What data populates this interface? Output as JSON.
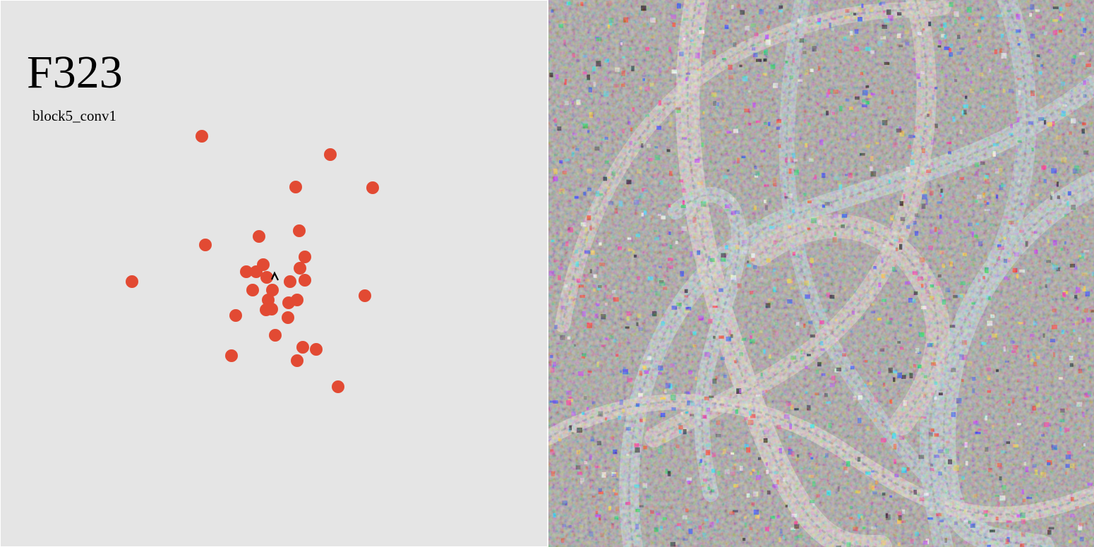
{
  "feature": {
    "id": "F323",
    "layer": "block5_conv1"
  },
  "colors": {
    "panel_background": "#e5e5e5",
    "point": "#e24a33",
    "cursor": "#000000"
  },
  "cursor_icon": "pointer-arrow-icon",
  "chart_data": {
    "type": "scatter",
    "title": "",
    "xlabel": "",
    "ylabel": "",
    "grid": false,
    "axes_visible": false,
    "xlim": [
      0,
      774
    ],
    "ylim": [
      773,
      0
    ],
    "points": [
      {
        "x": 285,
        "y": 192
      },
      {
        "x": 467,
        "y": 218
      },
      {
        "x": 418,
        "y": 264
      },
      {
        "x": 527,
        "y": 265
      },
      {
        "x": 366,
        "y": 334
      },
      {
        "x": 423,
        "y": 326
      },
      {
        "x": 290,
        "y": 346
      },
      {
        "x": 431,
        "y": 363
      },
      {
        "x": 186,
        "y": 398
      },
      {
        "x": 348,
        "y": 384
      },
      {
        "x": 362,
        "y": 384
      },
      {
        "x": 372,
        "y": 374
      },
      {
        "x": 377,
        "y": 392
      },
      {
        "x": 424,
        "y": 379
      },
      {
        "x": 410,
        "y": 398
      },
      {
        "x": 431,
        "y": 396
      },
      {
        "x": 357,
        "y": 410
      },
      {
        "x": 385,
        "y": 410
      },
      {
        "x": 516,
        "y": 418
      },
      {
        "x": 408,
        "y": 428
      },
      {
        "x": 420,
        "y": 424
      },
      {
        "x": 379,
        "y": 424
      },
      {
        "x": 376,
        "y": 438
      },
      {
        "x": 384,
        "y": 437
      },
      {
        "x": 333,
        "y": 446
      },
      {
        "x": 407,
        "y": 449
      },
      {
        "x": 389,
        "y": 474
      },
      {
        "x": 428,
        "y": 491
      },
      {
        "x": 447,
        "y": 494
      },
      {
        "x": 327,
        "y": 503
      },
      {
        "x": 420,
        "y": 510
      },
      {
        "x": 478,
        "y": 547
      }
    ],
    "cursor_point": {
      "x": 388,
      "y": 390
    }
  }
}
